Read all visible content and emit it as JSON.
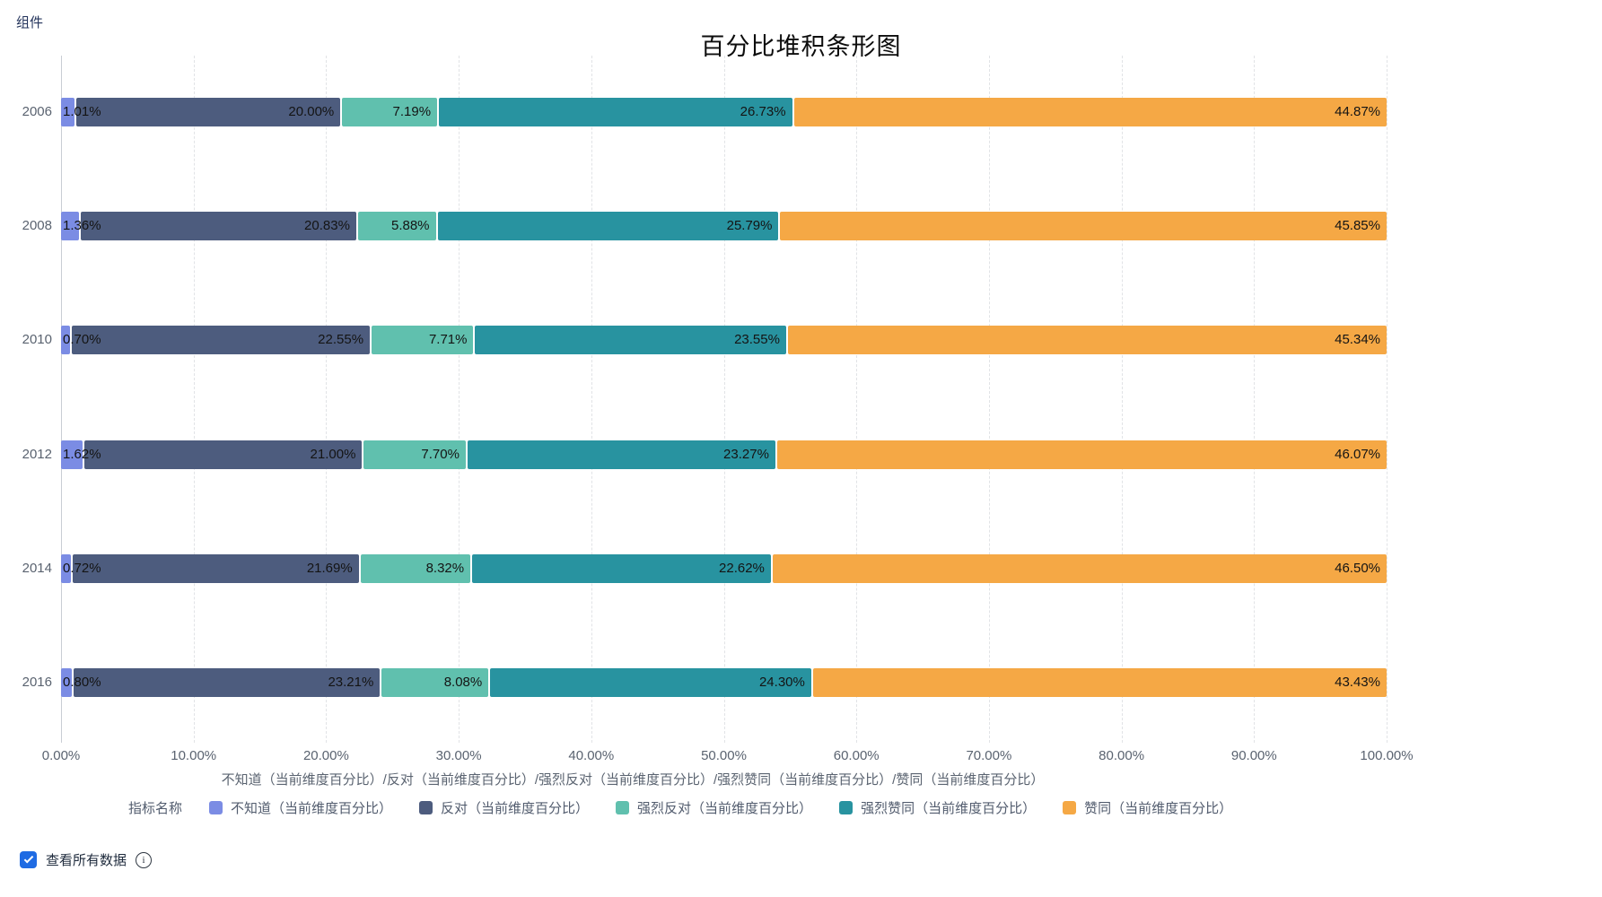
{
  "app": {
    "component_label": "组件"
  },
  "chart_data": {
    "type": "bar",
    "orientation": "horizontal",
    "stacked": "percent",
    "title": "百分比堆积条形图",
    "categories": [
      "2006",
      "2008",
      "2010",
      "2012",
      "2014",
      "2016"
    ],
    "series": [
      {
        "name": "不知道（当前维度百分比）",
        "color": "#7b8ce4",
        "values": [
          1.01,
          1.36,
          0.7,
          1.62,
          0.72,
          0.8
        ]
      },
      {
        "name": "反对（当前维度百分比）",
        "color": "#4d5c7e",
        "values": [
          20.0,
          20.83,
          22.55,
          21.0,
          21.69,
          23.21
        ]
      },
      {
        "name": "强烈反对（当前维度百分比）",
        "color": "#60c0ae",
        "values": [
          7.19,
          5.88,
          7.71,
          7.7,
          8.32,
          8.08
        ]
      },
      {
        "name": "强烈赞同（当前维度百分比）",
        "color": "#2893a0",
        "values": [
          26.73,
          25.79,
          23.55,
          23.27,
          22.62,
          24.3
        ]
      },
      {
        "name": "赞同（当前维度百分比）",
        "color": "#f5a845",
        "values": [
          44.87,
          45.85,
          45.34,
          46.07,
          46.5,
          43.43
        ]
      }
    ],
    "x_ticks": [
      "0.00%",
      "10.00%",
      "20.00%",
      "30.00%",
      "40.00%",
      "50.00%",
      "60.00%",
      "70.00%",
      "80.00%",
      "90.00%",
      "100.00%"
    ],
    "xlim": [
      0,
      100
    ],
    "xlabel": "不知道（当前维度百分比）/反对（当前维度百分比）/强烈反对（当前维度百分比）/强烈赞同（当前维度百分比）/赞同（当前维度百分比）",
    "legend_title": "指标名称",
    "legend_position": "bottom",
    "grid": "vertical-dashed",
    "value_label_format": "0.00%"
  },
  "footer": {
    "checkbox_label": "查看所有数据",
    "checkbox_checked": true,
    "info_icon": "info-circle-icon"
  },
  "colors": {
    "checkbox_accent": "#1f6be3",
    "gridline": "#e1e3e6",
    "axis_line": "#c9cdd4",
    "axis_text": "#5a6370",
    "value_label_text": "#141414"
  }
}
